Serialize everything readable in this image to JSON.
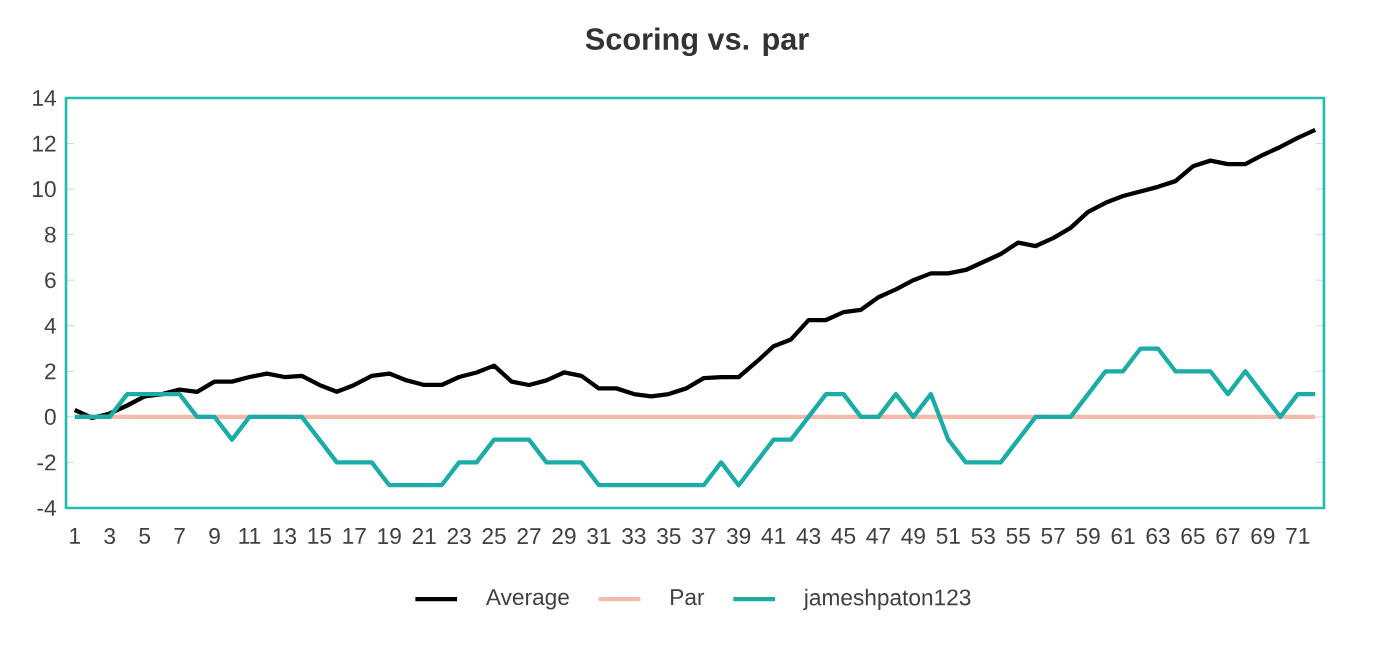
{
  "chart_data": {
    "type": "line",
    "title": "Scoring vs. par",
    "categories": [
      "1",
      null,
      "3",
      null,
      "5",
      null,
      "7",
      null,
      "9",
      null,
      "11",
      null,
      "13",
      null,
      "15",
      null,
      "17",
      null,
      "19",
      null,
      "21",
      null,
      "23",
      null,
      "25",
      null,
      "27",
      null,
      "29",
      null,
      "31",
      null,
      "33",
      null,
      "35",
      null,
      "37",
      null,
      "39",
      null,
      "41",
      null,
      "43",
      null,
      "45",
      null,
      "47",
      null,
      "49",
      null,
      "51",
      null,
      "53",
      null,
      "55",
      null,
      "57",
      null,
      "59",
      null,
      "61",
      null,
      "63",
      null,
      "65",
      null,
      "67",
      null,
      "69",
      null,
      "71",
      null
    ],
    "series": [
      {
        "name": "Average",
        "color": "#000000",
        "values": [
          0.3,
          -0.05,
          0.15,
          0.5,
          0.9,
          1.0,
          1.2,
          1.1,
          1.55,
          1.55,
          1.75,
          1.9,
          1.75,
          1.8,
          1.4,
          1.1,
          1.4,
          1.8,
          1.9,
          1.6,
          1.4,
          1.4,
          1.75,
          1.95,
          2.25,
          1.55,
          1.4,
          1.6,
          1.95,
          1.8,
          1.25,
          1.25,
          1.0,
          0.9,
          1.0,
          1.25,
          1.7,
          1.75,
          1.75,
          2.4,
          3.1,
          3.4,
          4.25,
          4.25,
          4.6,
          4.7,
          5.25,
          5.6,
          6.0,
          6.3,
          6.3,
          6.45,
          6.8,
          7.15,
          7.65,
          7.5,
          7.85,
          8.3,
          9.0,
          9.4,
          9.7,
          9.9,
          10.1,
          10.35,
          11.0,
          11.25,
          11.1,
          11.1,
          11.5,
          11.85,
          12.25,
          12.6
        ]
      },
      {
        "name": "Par",
        "color": "#f4b9a9",
        "values": [
          0,
          0,
          0,
          0,
          0,
          0,
          0,
          0,
          0,
          0,
          0,
          0,
          0,
          0,
          0,
          0,
          0,
          0,
          0,
          0,
          0,
          0,
          0,
          0,
          0,
          0,
          0,
          0,
          0,
          0,
          0,
          0,
          0,
          0,
          0,
          0,
          0,
          0,
          0,
          0,
          0,
          0,
          0,
          0,
          0,
          0,
          0,
          0,
          0,
          0,
          0,
          0,
          0,
          0,
          0,
          0,
          0,
          0,
          0,
          0,
          0,
          0,
          0,
          0,
          0,
          0,
          0,
          0,
          0,
          0,
          0,
          0
        ]
      },
      {
        "name": "jameshpaton123",
        "color": "#1aaca6",
        "values": [
          0,
          0,
          0,
          1,
          1,
          1,
          1,
          0,
          0,
          -1,
          0,
          0,
          0,
          0,
          -1,
          -2,
          -2,
          -2,
          -3,
          -3,
          -3,
          -3,
          -2,
          -2,
          -1,
          -1,
          -1,
          -2,
          -2,
          -2,
          -3,
          -3,
          -3,
          -3,
          -3,
          -3,
          -3,
          -2,
          -3,
          -2,
          -1,
          -1,
          0,
          1,
          1,
          0,
          0,
          1,
          0,
          1,
          -1,
          -2,
          -2,
          -2,
          -1,
          0,
          0,
          0,
          1,
          2,
          2,
          3,
          3,
          2,
          2,
          2,
          1,
          2,
          1,
          0,
          1,
          1
        ]
      }
    ],
    "ylim": [
      -4,
      14
    ],
    "yticks": [
      -4,
      -2,
      0,
      2,
      4,
      6,
      8,
      10,
      12,
      14
    ],
    "legend": "bottom"
  }
}
